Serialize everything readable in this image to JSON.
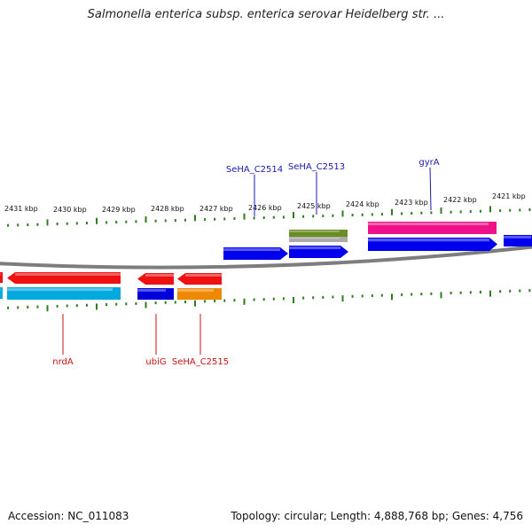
{
  "title": "Salmonella enterica subsp. enterica serovar Heidelberg str. ...",
  "footer": {
    "accession": "Accession: NC_011083",
    "summary": "Topology: circular; Length: 4,888,768 bp; Genes: 4,756"
  },
  "colors": {
    "backbone": "#7d7d7d",
    "tick": "#2e7d1e",
    "label_blue": "#1a1ab0",
    "label_red": "#cc1111"
  },
  "ruler": {
    "labels": [
      "2431 kbp",
      "2430 kbp",
      "2429 kbp",
      "2428 kbp",
      "2427 kbp",
      "2426 kbp",
      "2425 kbp",
      "2424 kbp",
      "2423 kbp",
      "2422 kbp",
      "2421 kbp"
    ]
  },
  "features": [
    {
      "name": "feature-red-left-edge",
      "color": "#ee1111",
      "track": "reverse",
      "dir": "none"
    },
    {
      "name": "feature-nrdA",
      "color": "#ee1111",
      "track": "reverse",
      "dir": "left"
    },
    {
      "name": "feature-cyan",
      "color": "#00aadd",
      "track": "reverse2",
      "dir": "none"
    },
    {
      "name": "feature-cyan-left-edge",
      "color": "#00aadd",
      "track": "reverse2",
      "dir": "none"
    },
    {
      "name": "feature-ubiG-red",
      "color": "#ee1111",
      "track": "reverse",
      "dir": "left"
    },
    {
      "name": "feature-ubiG-blue",
      "color": "#0000dd",
      "track": "reverse2",
      "dir": "none"
    },
    {
      "name": "feature-SeHA_C2515-red",
      "color": "#ee1111",
      "track": "reverse",
      "dir": "left"
    },
    {
      "name": "feature-SeHA_C2515-orange",
      "color": "#ee8800",
      "track": "reverse2",
      "dir": "none"
    },
    {
      "name": "feature-SeHA_C2514",
      "color": "#0000ee",
      "track": "forward",
      "dir": "right"
    },
    {
      "name": "feature-SeHA_C2513-blue",
      "color": "#0000ee",
      "track": "forward",
      "dir": "right"
    },
    {
      "name": "feature-SeHA_C2513-green",
      "color": "#6b8e23",
      "track": "forward2",
      "dir": "none"
    },
    {
      "name": "feature-SeHA_C2513-grey",
      "color": "#aaaaaa",
      "track": "forward2b",
      "dir": "none"
    },
    {
      "name": "feature-gyrA-pink",
      "color": "#ee1188",
      "track": "forward2",
      "dir": "none"
    },
    {
      "name": "feature-gyrA-blue",
      "color": "#0000ee",
      "track": "forward",
      "dir": "right"
    },
    {
      "name": "feature-blue-right-edge",
      "color": "#0000ee",
      "track": "forward",
      "dir": "none"
    }
  ],
  "gene_labels": [
    {
      "text": "SeHA_C2514",
      "color": "#1a1ab0"
    },
    {
      "text": "SeHA_C2513",
      "color": "#1a1ab0"
    },
    {
      "text": "gyrA",
      "color": "#1a1ab0"
    },
    {
      "text": "nrdA",
      "color": "#cc1111"
    },
    {
      "text": "ubiG",
      "color": "#cc1111"
    },
    {
      "text": "SeHA_C2515",
      "color": "#cc1111"
    }
  ]
}
